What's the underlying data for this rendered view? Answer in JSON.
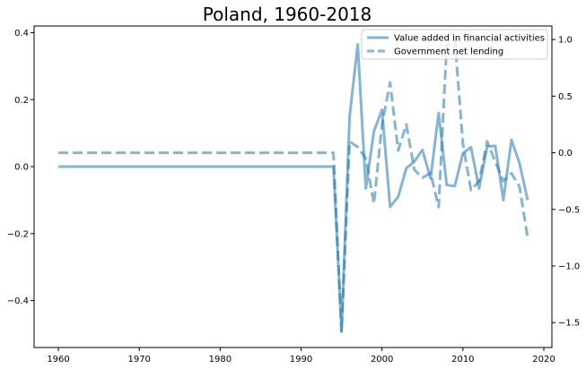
{
  "chart_data": {
    "type": "line",
    "title": "Poland, 1960-2018",
    "xlabel": "",
    "ylabel_left": "",
    "ylabel_right": "",
    "xlim": [
      1957,
      2021
    ],
    "ylim_left": [
      -0.54,
      0.42
    ],
    "ylim_right": [
      -1.72,
      1.12
    ],
    "x_ticks": [
      1960,
      1970,
      1980,
      1990,
      2000,
      2010,
      2020
    ],
    "y_ticks_left": [
      0.4,
      0.2,
      0.0,
      -0.2,
      -0.4
    ],
    "y_tick_labels_left": [
      "0.4",
      "0.2",
      "0.0",
      "−0.2",
      "−0.4"
    ],
    "y_ticks_right": [
      1.0,
      0.5,
      0.0,
      -0.5,
      -1.0,
      -1.5
    ],
    "y_tick_labels_right": [
      "1.0",
      "0.5",
      "0.0",
      "−0.5",
      "−1.0",
      "−1.5"
    ],
    "grid": false,
    "legend_position": "top-right",
    "color": "#1f77b4",
    "series": [
      {
        "name": "Value added in financial activities",
        "axis": "left",
        "style": "solid",
        "x": [
          1960,
          1961,
          1962,
          1963,
          1964,
          1965,
          1966,
          1967,
          1968,
          1969,
          1970,
          1971,
          1972,
          1973,
          1974,
          1975,
          1976,
          1977,
          1978,
          1979,
          1980,
          1981,
          1982,
          1983,
          1984,
          1985,
          1986,
          1987,
          1988,
          1989,
          1990,
          1991,
          1992,
          1993,
          1994,
          1995,
          1996,
          1997,
          1998,
          1999,
          2000,
          2001,
          2002,
          2003,
          2004,
          2005,
          2006,
          2007,
          2008,
          2009,
          2010,
          2011,
          2012,
          2013,
          2014,
          2015,
          2016,
          2017,
          2018
        ],
        "values": [
          0,
          0,
          0,
          0,
          0,
          0,
          0,
          0,
          0,
          0,
          0,
          0,
          0,
          0,
          0,
          0,
          0,
          0,
          0,
          0,
          0,
          0,
          0,
          0,
          0,
          0,
          0,
          0,
          0,
          0,
          0,
          0,
          0,
          0,
          0,
          -0.49,
          0.15,
          0.365,
          -0.065,
          0.105,
          0.17,
          -0.12,
          -0.09,
          -0.005,
          0.015,
          0.05,
          -0.035,
          0.16,
          -0.055,
          -0.058,
          0.04,
          0.058,
          -0.065,
          0.06,
          0.062,
          -0.1,
          0.08,
          0.01,
          -0.1
        ]
      },
      {
        "name": "Government net lending",
        "axis": "right",
        "style": "dashed",
        "x": [
          1960,
          1961,
          1962,
          1963,
          1964,
          1965,
          1966,
          1967,
          1968,
          1969,
          1970,
          1971,
          1972,
          1973,
          1974,
          1975,
          1976,
          1977,
          1978,
          1979,
          1980,
          1981,
          1982,
          1983,
          1984,
          1985,
          1986,
          1987,
          1988,
          1989,
          1990,
          1991,
          1992,
          1993,
          1994,
          1995,
          1996,
          1997,
          1998,
          1999,
          2000,
          2001,
          2002,
          2003,
          2004,
          2005,
          2006,
          2007,
          2008,
          2009,
          2010,
          2011,
          2012,
          2013,
          2014,
          2015,
          2016,
          2017,
          2018
        ],
        "values": [
          0,
          0,
          0,
          0,
          0,
          0,
          0,
          0,
          0,
          0,
          0,
          0,
          0,
          0,
          0,
          0,
          0,
          0,
          0,
          0,
          0,
          0,
          0,
          0,
          0,
          0,
          0,
          0,
          0,
          0,
          0,
          0,
          0,
          0,
          0,
          -1.58,
          0.1,
          0.05,
          -0.05,
          -0.45,
          0.25,
          0.62,
          0.02,
          0.25,
          -0.15,
          -0.22,
          -0.18,
          -0.48,
          0.95,
          1.0,
          0.08,
          -0.33,
          -0.25,
          0.1,
          -0.08,
          -0.25,
          -0.18,
          -0.3,
          -0.75
        ]
      }
    ]
  }
}
